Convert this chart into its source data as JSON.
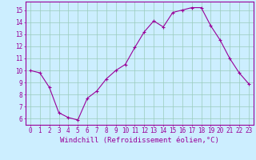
{
  "x": [
    0,
    1,
    2,
    3,
    4,
    5,
    6,
    7,
    8,
    9,
    10,
    11,
    12,
    13,
    14,
    15,
    16,
    17,
    18,
    19,
    20,
    21,
    22,
    23
  ],
  "y": [
    10.0,
    9.8,
    8.6,
    6.5,
    6.1,
    5.9,
    7.7,
    8.3,
    9.3,
    10.0,
    10.5,
    11.9,
    13.2,
    14.1,
    13.6,
    14.8,
    15.0,
    15.2,
    15.2,
    13.7,
    12.5,
    11.0,
    9.8,
    8.9
  ],
  "line_color": "#990099",
  "marker": "+",
  "marker_size": 3,
  "bg_color": "#cceeff",
  "grid_color": "#99ccbb",
  "xlabel": "Windchill (Refroidissement éolien,°C)",
  "xlim": [
    -0.5,
    23.5
  ],
  "ylim": [
    5.5,
    15.7
  ],
  "yticks": [
    6,
    7,
    8,
    9,
    10,
    11,
    12,
    13,
    14,
    15
  ],
  "xtick_labels": [
    "0",
    "1",
    "2",
    "3",
    "4",
    "5",
    "6",
    "7",
    "8",
    "9",
    "10",
    "11",
    "12",
    "13",
    "14",
    "15",
    "16",
    "17",
    "18",
    "19",
    "20",
    "21",
    "22",
    "23"
  ],
  "label_color": "#990099",
  "tick_color": "#990099",
  "spine_color": "#990099",
  "tick_fontsize": 5.5,
  "label_fontsize": 6.5,
  "linewidth": 0.8,
  "markeredgewidth": 0.8
}
